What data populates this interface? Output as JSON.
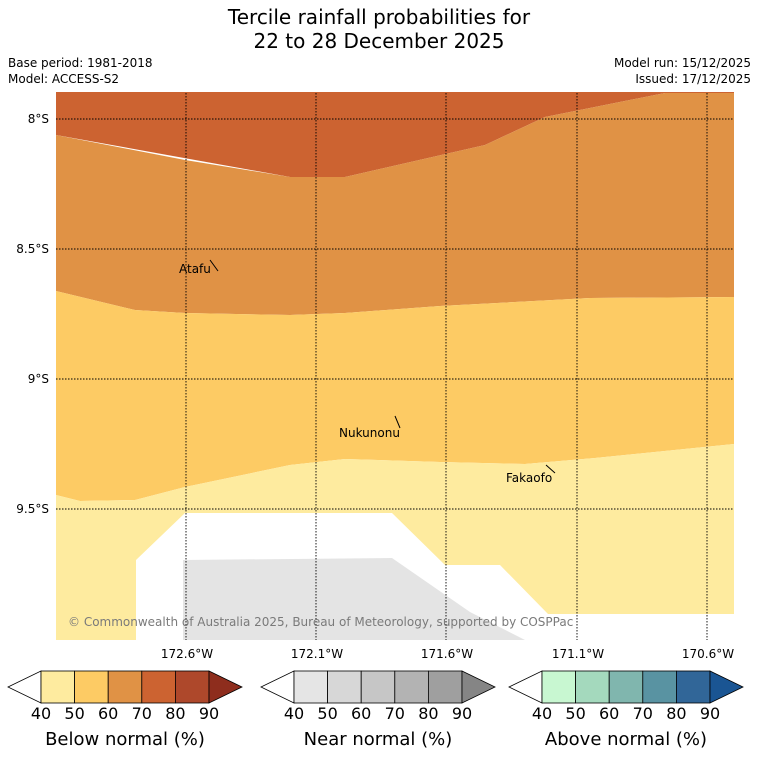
{
  "title": {
    "line1": "Tercile rainfall probabilities for",
    "line2": "22 to 28 December 2025"
  },
  "meta": {
    "base_period": "Base period: 1981-2018",
    "model": "Model: ACCESS-S2",
    "model_run": "Model run: 15/12/2025",
    "issued": "Issued: 17/12/2025"
  },
  "map": {
    "lat_labels": [
      "8°S",
      "8.5°S",
      "9°S",
      "9.5°S"
    ],
    "lon_labels": [
      "172.6°W",
      "172.1°W",
      "171.6°W",
      "171.1°W",
      "170.6°W"
    ],
    "places": [
      "Atafu",
      "Nukunonu",
      "Fakaofo"
    ],
    "copyright": "© Commonwealth of Australia 2025, Bureau of Meteorology, supported by COSPPac"
  },
  "colorbars": [
    {
      "label": "Below normal (%)",
      "ticks": [
        "40",
        "50",
        "60",
        "70",
        "80",
        "90"
      ],
      "colors": [
        "#ffffff",
        "#feeb9f",
        "#fdcb64",
        "#e09245",
        "#cc6331",
        "#ae482b",
        "#8e2d1d"
      ]
    },
    {
      "label": "Near normal (%)",
      "ticks": [
        "40",
        "50",
        "60",
        "70",
        "80",
        "90"
      ],
      "colors": [
        "#ffffff",
        "#e5e5e5",
        "#d7d7d7",
        "#c6c6c6",
        "#b3b3b3",
        "#9f9f9f",
        "#858585"
      ]
    },
    {
      "label": "Above normal (%)",
      "ticks": [
        "40",
        "50",
        "60",
        "70",
        "80",
        "90"
      ],
      "colors": [
        "#ffffff",
        "#c8f7d1",
        "#a4d9bd",
        "#80b6ae",
        "#5993a2",
        "#316698",
        "#1a5593"
      ]
    }
  ]
}
